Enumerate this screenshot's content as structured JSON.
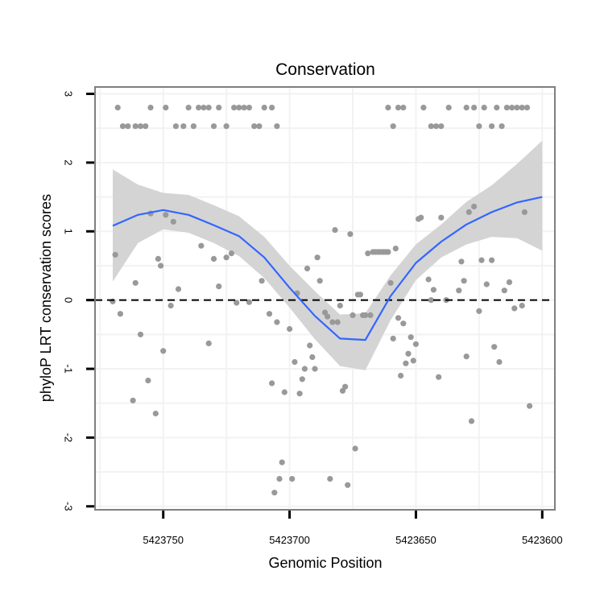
{
  "chart_data": {
    "type": "scatter",
    "title": "Conservation",
    "xlabel": "Genomic Position",
    "ylabel": "phyloP LRT conservation scores",
    "x_reversed": true,
    "xlim": [
      5423777,
      5423595
    ],
    "ylim": [
      -3.05,
      3.1
    ],
    "x_ticks": [
      5423750,
      5423700,
      5423650,
      5423600
    ],
    "x_tick_labels": [
      "5423750",
      "5423700",
      "5423650",
      "5423600"
    ],
    "y_ticks": [
      -3,
      -2,
      -1,
      0,
      1,
      2,
      3
    ],
    "y_tick_labels": [
      "-3",
      "-2",
      "-1",
      "0",
      "1",
      "2",
      "3"
    ],
    "reference_line": {
      "y": 0,
      "style": "dashed"
    },
    "colors": {
      "points": "#999999",
      "smooth_line": "#3366ff",
      "ribbon": "#d4d4d4",
      "grid": "#f2f2f2",
      "frame": "#7f7f7f",
      "reference": "#000000"
    },
    "series": [
      {
        "name": "scores",
        "points": [
          [
            5423768,
            2.8
          ],
          [
            5423766,
            2.53
          ],
          [
            5423764,
            2.53
          ],
          [
            5423761,
            2.53
          ],
          [
            5423759,
            2.53
          ],
          [
            5423757,
            2.53
          ],
          [
            5423755,
            2.8
          ],
          [
            5423749,
            2.8
          ],
          [
            5423745,
            2.53
          ],
          [
            5423742,
            2.53
          ],
          [
            5423740,
            2.8
          ],
          [
            5423738,
            2.53
          ],
          [
            5423736,
            2.8
          ],
          [
            5423734,
            2.8
          ],
          [
            5423732,
            2.8
          ],
          [
            5423730,
            2.53
          ],
          [
            5423728,
            2.8
          ],
          [
            5423725,
            2.53
          ],
          [
            5423722,
            2.8
          ],
          [
            5423720,
            2.8
          ],
          [
            5423718,
            2.8
          ],
          [
            5423716,
            2.8
          ],
          [
            5423714,
            2.53
          ],
          [
            5423712,
            2.53
          ],
          [
            5423710,
            2.8
          ],
          [
            5423707,
            2.8
          ],
          [
            5423705,
            2.53
          ],
          [
            5423661,
            2.8
          ],
          [
            5423659,
            2.53
          ],
          [
            5423657,
            2.8
          ],
          [
            5423655,
            2.8
          ],
          [
            5423647,
            2.8
          ],
          [
            5423644,
            2.53
          ],
          [
            5423642,
            2.53
          ],
          [
            5423640,
            2.53
          ],
          [
            5423637,
            2.8
          ],
          [
            5423630,
            2.8
          ],
          [
            5423627,
            2.8
          ],
          [
            5423625,
            2.53
          ],
          [
            5423623,
            2.8
          ],
          [
            5423620,
            2.53
          ],
          [
            5423618,
            2.8
          ],
          [
            5423616,
            2.53
          ],
          [
            5423614,
            2.8
          ],
          [
            5423612,
            2.8
          ],
          [
            5423610,
            2.8
          ],
          [
            5423608,
            2.8
          ],
          [
            5423606,
            2.8
          ],
          [
            5423770,
            -0.02
          ],
          [
            5423769,
            0.66
          ],
          [
            5423767,
            -0.2
          ],
          [
            5423762,
            -1.46
          ],
          [
            5423761,
            0.25
          ],
          [
            5423759,
            -0.5
          ],
          [
            5423756,
            -1.17
          ],
          [
            5423755,
            1.26
          ],
          [
            5423753,
            -1.65
          ],
          [
            5423752,
            0.6
          ],
          [
            5423751,
            0.5
          ],
          [
            5423750,
            -0.74
          ],
          [
            5423749,
            1.24
          ],
          [
            5423747,
            -0.08
          ],
          [
            5423746,
            1.14
          ],
          [
            5423744,
            0.16
          ],
          [
            5423735,
            0.79
          ],
          [
            5423732,
            -0.63
          ],
          [
            5423730,
            0.6
          ],
          [
            5423728,
            0.2
          ],
          [
            5423725,
            0.62
          ],
          [
            5423723,
            0.68
          ],
          [
            5423721,
            -0.04
          ],
          [
            5423716,
            -0.03
          ],
          [
            5423711,
            0.28
          ],
          [
            5423708,
            -0.2
          ],
          [
            5423707,
            -1.21
          ],
          [
            5423706,
            -2.8
          ],
          [
            5423705,
            -0.32
          ],
          [
            5423704,
            -2.6
          ],
          [
            5423703,
            -2.36
          ],
          [
            5423702,
            -1.34
          ],
          [
            5423700,
            -0.42
          ],
          [
            5423699,
            -2.6
          ],
          [
            5423698,
            -0.9
          ],
          [
            5423697,
            0.1
          ],
          [
            5423696,
            -1.36
          ],
          [
            5423695,
            -1.15
          ],
          [
            5423694,
            -1.0
          ],
          [
            5423693,
            0.46
          ],
          [
            5423692,
            -0.66
          ],
          [
            5423691,
            -0.83
          ],
          [
            5423690,
            -1.0
          ],
          [
            5423689,
            0.62
          ],
          [
            5423688,
            0.28
          ],
          [
            5423686,
            -0.18
          ],
          [
            5423685,
            -0.24
          ],
          [
            5423684,
            -2.6
          ],
          [
            5423683,
            -0.32
          ],
          [
            5423682,
            1.02
          ],
          [
            5423681,
            -0.32
          ],
          [
            5423680,
            -0.08
          ],
          [
            5423679,
            -1.32
          ],
          [
            5423678,
            -1.26
          ],
          [
            5423677,
            -2.69
          ],
          [
            5423676,
            0.96
          ],
          [
            5423675,
            -0.22
          ],
          [
            5423674,
            -2.16
          ],
          [
            5423673,
            0.08
          ],
          [
            5423672,
            0.08
          ],
          [
            5423671,
            -0.22
          ],
          [
            5423670,
            -0.22
          ],
          [
            5423669,
            0.68
          ],
          [
            5423668,
            -0.22
          ],
          [
            5423667,
            0.7
          ],
          [
            5423666,
            0.7
          ],
          [
            5423665,
            0.7
          ],
          [
            5423664,
            0.7
          ],
          [
            5423663,
            0.7
          ],
          [
            5423662,
            0.7
          ],
          [
            5423661,
            0.7
          ],
          [
            5423660,
            0.25
          ],
          [
            5423659,
            -0.56
          ],
          [
            5423658,
            0.75
          ],
          [
            5423657,
            -0.26
          ],
          [
            5423656,
            -1.1
          ],
          [
            5423655,
            -0.34
          ],
          [
            5423654,
            -0.92
          ],
          [
            5423653,
            -0.78
          ],
          [
            5423652,
            -0.54
          ],
          [
            5423651,
            -0.88
          ],
          [
            5423650,
            -0.64
          ],
          [
            5423649,
            1.18
          ],
          [
            5423648,
            1.2
          ],
          [
            5423645,
            0.3
          ],
          [
            5423644,
            0.0
          ],
          [
            5423643,
            0.15
          ],
          [
            5423641,
            -1.12
          ],
          [
            5423640,
            1.2
          ],
          [
            5423638,
            0.0
          ],
          [
            5423633,
            0.14
          ],
          [
            5423632,
            0.56
          ],
          [
            5423631,
            0.28
          ],
          [
            5423630,
            -0.82
          ],
          [
            5423629,
            1.28
          ],
          [
            5423628,
            -1.76
          ],
          [
            5423627,
            1.36
          ],
          [
            5423625,
            -0.16
          ],
          [
            5423624,
            0.58
          ],
          [
            5423622,
            0.23
          ],
          [
            5423620,
            0.58
          ],
          [
            5423619,
            -0.68
          ],
          [
            5423617,
            -0.9
          ],
          [
            5423615,
            0.14
          ],
          [
            5423613,
            0.26
          ],
          [
            5423611,
            -0.12
          ],
          [
            5423608,
            -0.08
          ],
          [
            5423607,
            1.28
          ],
          [
            5423605,
            -1.54
          ]
        ]
      }
    ],
    "smooth": {
      "x": [
        5423770,
        5423760,
        5423750,
        5423740,
        5423730,
        5423720,
        5423710,
        5423700,
        5423690,
        5423680,
        5423670,
        5423660,
        5423650,
        5423640,
        5423630,
        5423620,
        5423610,
        5423600
      ],
      "y": [
        1.08,
        1.24,
        1.31,
        1.24,
        1.09,
        0.93,
        0.62,
        0.18,
        -0.23,
        -0.56,
        -0.58,
        0.06,
        0.54,
        0.85,
        1.1,
        1.28,
        1.42,
        1.5
      ],
      "lower": [
        0.27,
        0.83,
        1.03,
        0.98,
        0.83,
        0.64,
        0.32,
        -0.11,
        -0.57,
        -0.96,
        -1.02,
        -0.29,
        0.29,
        0.62,
        0.81,
        0.92,
        0.9,
        0.72
      ],
      "upper": [
        1.9,
        1.68,
        1.56,
        1.53,
        1.38,
        1.22,
        0.92,
        0.5,
        0.13,
        -0.21,
        -0.19,
        0.36,
        0.81,
        1.1,
        1.43,
        1.67,
        1.98,
        2.32
      ]
    }
  }
}
